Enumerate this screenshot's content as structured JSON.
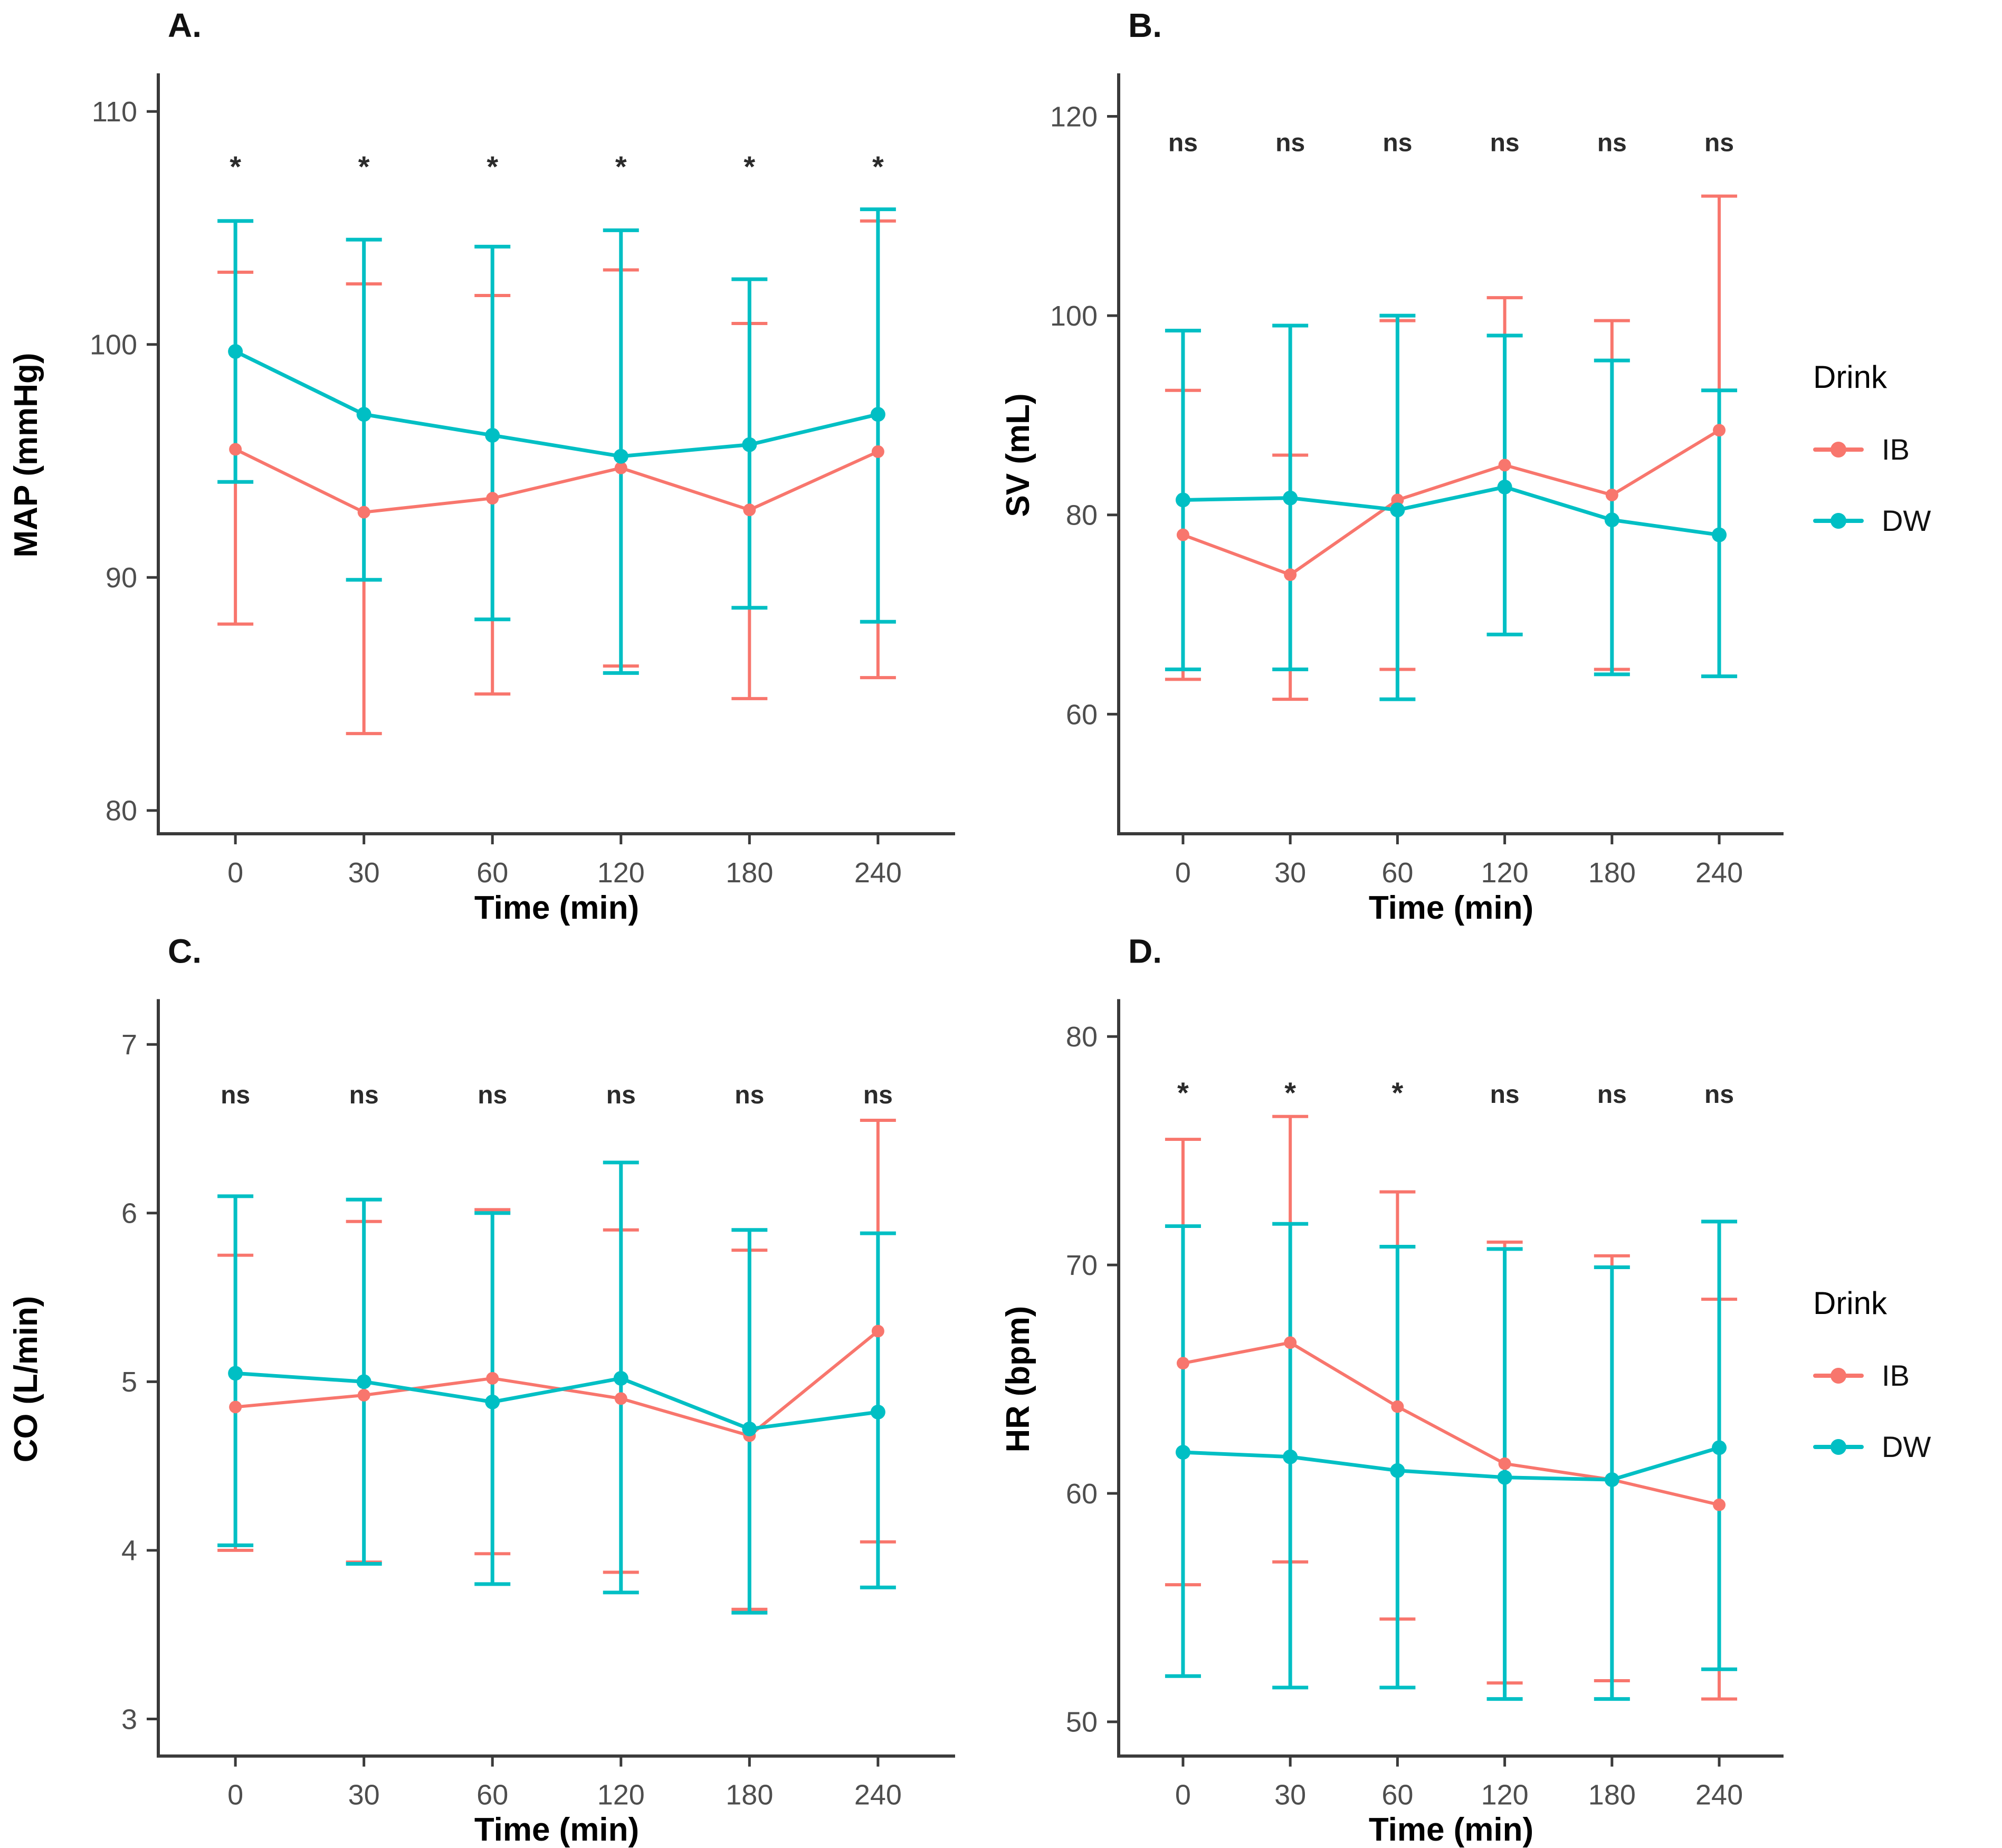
{
  "figure": {
    "background": "#ffffff",
    "colors": {
      "IB": "#F8766D",
      "DW": "#00BFC4",
      "axis_line": "#3a3a3a",
      "tick_text": "#4e4e4e",
      "sig_text": "#2b2b2b",
      "panel_letter": "#111111",
      "axis_title": "#000000"
    },
    "legend": {
      "title": "Drink",
      "entries": [
        {
          "label": "IB",
          "color": "#F8766D"
        },
        {
          "label": "DW",
          "color": "#00BFC4"
        }
      ]
    }
  },
  "chart_data": [
    {
      "id": "A",
      "panel_letter": "A.",
      "type": "line",
      "xlabel": "Time (min)",
      "ylabel": "MAP (mmHg)",
      "categories": [
        "0",
        "30",
        "60",
        "120",
        "180",
        "240"
      ],
      "ylim": [
        79.0,
        111.5
      ],
      "yticks": [
        80,
        90,
        100,
        110
      ],
      "grid": false,
      "series": [
        {
          "name": "IB",
          "color": "#F8766D",
          "values": [
            95.5,
            92.8,
            93.4,
            94.7,
            92.9,
            95.4
          ],
          "upper": [
            103.1,
            102.6,
            102.1,
            103.2,
            100.9,
            105.3
          ],
          "lower": [
            88.0,
            83.3,
            85.0,
            86.2,
            84.8,
            85.7
          ]
        },
        {
          "name": "DW",
          "color": "#00BFC4",
          "values": [
            99.7,
            97.0,
            96.1,
            95.2,
            95.7,
            97.0
          ],
          "upper": [
            105.3,
            104.5,
            104.2,
            104.9,
            102.8,
            105.8
          ],
          "lower": [
            94.1,
            89.9,
            88.2,
            85.9,
            88.7,
            88.1
          ]
        }
      ],
      "significance": {
        "labels": [
          "*",
          "*",
          "*",
          "*",
          "*",
          "*"
        ],
        "y": 107.2
      }
    },
    {
      "id": "B",
      "panel_letter": "B.",
      "type": "line",
      "xlabel": "Time (min)",
      "ylabel": "SV (mL)",
      "categories": [
        "0",
        "30",
        "60",
        "120",
        "180",
        "240"
      ],
      "ylim": [
        48.0,
        124.0
      ],
      "yticks": [
        60,
        80,
        100,
        120
      ],
      "grid": false,
      "series": [
        {
          "name": "IB",
          "color": "#F8766D",
          "values": [
            78.0,
            74.0,
            81.5,
            85.0,
            82.0,
            88.5
          ],
          "upper": [
            92.5,
            86.0,
            99.5,
            101.8,
            99.5,
            112.0
          ],
          "lower": [
            63.5,
            61.5,
            64.5,
            68.0,
            64.5,
            63.8
          ]
        },
        {
          "name": "DW",
          "color": "#00BFC4",
          "values": [
            81.5,
            81.7,
            80.5,
            82.8,
            79.5,
            78.0
          ],
          "upper": [
            98.5,
            99.0,
            100.0,
            98.0,
            95.5,
            92.5
          ],
          "lower": [
            64.5,
            64.5,
            61.5,
            68.0,
            64.0,
            63.8
          ]
        }
      ],
      "significance": {
        "labels": [
          "ns",
          "ns",
          "ns",
          "ns",
          "ns",
          "ns"
        ],
        "y": 116.5
      }
    },
    {
      "id": "C",
      "panel_letter": "C.",
      "type": "line",
      "xlabel": "Time (min)",
      "ylabel": "CO (L/min)",
      "categories": [
        "0",
        "30",
        "60",
        "120",
        "180",
        "240"
      ],
      "ylim": [
        2.78,
        7.25
      ],
      "yticks": [
        3,
        4,
        5,
        6,
        7
      ],
      "grid": false,
      "series": [
        {
          "name": "IB",
          "color": "#F8766D",
          "values": [
            4.85,
            4.92,
            5.02,
            4.9,
            4.68,
            5.3
          ],
          "upper": [
            5.75,
            5.95,
            6.02,
            5.9,
            5.78,
            6.55
          ],
          "lower": [
            4.0,
            3.93,
            3.98,
            3.87,
            3.65,
            4.05
          ]
        },
        {
          "name": "DW",
          "color": "#00BFC4",
          "values": [
            5.05,
            5.0,
            4.88,
            5.02,
            4.72,
            4.82
          ],
          "upper": [
            6.1,
            6.08,
            6.0,
            6.3,
            5.9,
            5.88
          ],
          "lower": [
            4.03,
            3.92,
            3.8,
            3.75,
            3.63,
            3.78
          ]
        }
      ],
      "significance": {
        "labels": [
          "ns",
          "ns",
          "ns",
          "ns",
          "ns",
          "ns"
        ],
        "y": 6.65
      }
    },
    {
      "id": "D",
      "panel_letter": "D.",
      "type": "line",
      "xlabel": "Time (min)",
      "ylabel": "HR (bpm)",
      "categories": [
        "0",
        "30",
        "60",
        "120",
        "180",
        "240"
      ],
      "ylim": [
        48.5,
        81.5
      ],
      "yticks": [
        50,
        60,
        70,
        80
      ],
      "grid": false,
      "series": [
        {
          "name": "IB",
          "color": "#F8766D",
          "values": [
            65.7,
            66.6,
            63.8,
            61.3,
            60.6,
            59.5
          ],
          "upper": [
            75.5,
            76.5,
            73.2,
            71.0,
            70.4,
            68.5
          ],
          "lower": [
            56.0,
            57.0,
            54.5,
            51.7,
            51.8,
            51.0
          ]
        },
        {
          "name": "DW",
          "color": "#00BFC4",
          "values": [
            61.8,
            61.6,
            61.0,
            60.7,
            60.6,
            62.0
          ],
          "upper": [
            71.7,
            71.8,
            70.8,
            70.7,
            69.9,
            71.9
          ],
          "lower": [
            52.0,
            51.5,
            51.5,
            51.0,
            51.0,
            52.3
          ]
        }
      ],
      "significance": {
        "labels": [
          "*",
          "*",
          "*",
          "ns",
          "ns",
          "ns"
        ],
        "y": 77.1
      }
    }
  ]
}
